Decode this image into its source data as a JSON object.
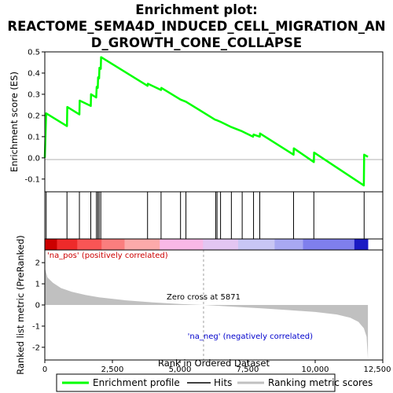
{
  "chart_data": {
    "type": "line",
    "title_lines": [
      "Enrichment plot:",
      "REACTOME_SEMA4D_INDUCED_CELL_MIGRATION_AN",
      "D_GROWTH_CONE_COLLAPSE"
    ],
    "top_panel": {
      "ylabel": "Enrichment score (ES)",
      "ylim": [
        -0.16,
        0.5
      ],
      "yticks": [
        "0.5",
        "0.4",
        "0.3",
        "0.2",
        "0.1",
        "0.0",
        "-0.1"
      ],
      "ytick_values": [
        0.5,
        0.4,
        0.3,
        0.2,
        0.1,
        0.0,
        -0.1
      ],
      "grid": false,
      "es_curve": [
        [
          0,
          0.0
        ],
        [
          50,
          0.21
        ],
        [
          820,
          0.15
        ],
        [
          830,
          0.24
        ],
        [
          1280,
          0.205
        ],
        [
          1290,
          0.27
        ],
        [
          1700,
          0.245
        ],
        [
          1710,
          0.3
        ],
        [
          1900,
          0.285
        ],
        [
          1920,
          0.335
        ],
        [
          1960,
          0.33
        ],
        [
          1970,
          0.38
        ],
        [
          2010,
          0.375
        ],
        [
          2020,
          0.425
        ],
        [
          2070,
          0.42
        ],
        [
          2080,
          0.475
        ],
        [
          3800,
          0.34
        ],
        [
          3810,
          0.35
        ],
        [
          4300,
          0.32
        ],
        [
          4310,
          0.33
        ],
        [
          5020,
          0.275
        ],
        [
          5220,
          0.265
        ],
        [
          6300,
          0.18
        ],
        [
          6350,
          0.178
        ],
        [
          6500,
          0.17
        ],
        [
          6900,
          0.145
        ],
        [
          7300,
          0.125
        ],
        [
          7700,
          0.1
        ],
        [
          7720,
          0.11
        ],
        [
          7950,
          0.1
        ],
        [
          7960,
          0.115
        ],
        [
          9200,
          0.015
        ],
        [
          9210,
          0.045
        ],
        [
          9950,
          -0.02
        ],
        [
          9960,
          0.025
        ],
        [
          11800,
          -0.13
        ],
        [
          11810,
          0.015
        ],
        [
          11950,
          0.005
        ]
      ]
    },
    "hits": [
      50,
      820,
      1280,
      1700,
      1910,
      1960,
      2010,
      2070,
      3800,
      4300,
      5020,
      5220,
      6320,
      6370,
      6500,
      6900,
      7300,
      7720,
      7950,
      9200,
      9950,
      11810
    ],
    "bottom_panel": {
      "ylabel": "Ranked list metric (PreRanked)",
      "ylim": [
        -2.6,
        2.6
      ],
      "yticks": [
        "2",
        "1",
        "0",
        "-1",
        "-2"
      ],
      "ytick_values": [
        2,
        1,
        0,
        -1,
        -2
      ],
      "metric_curve": [
        [
          0,
          1.75
        ],
        [
          100,
          1.3
        ],
        [
          300,
          1.05
        ],
        [
          600,
          0.8
        ],
        [
          1000,
          0.62
        ],
        [
          1500,
          0.47
        ],
        [
          2000,
          0.36
        ],
        [
          3000,
          0.22
        ],
        [
          4000,
          0.12
        ],
        [
          5000,
          0.05
        ],
        [
          5871,
          0.0
        ],
        [
          7000,
          -0.08
        ],
        [
          8000,
          -0.16
        ],
        [
          9000,
          -0.24
        ],
        [
          10000,
          -0.33
        ],
        [
          10800,
          -0.45
        ],
        [
          11300,
          -0.6
        ],
        [
          11600,
          -0.8
        ],
        [
          11800,
          -1.1
        ],
        [
          11900,
          -1.5
        ],
        [
          11950,
          -2.55
        ]
      ],
      "zero_cross_rank": 5871,
      "zero_cross_label": "Zero cross at 5871",
      "pos_label": "'na_pos' (positively correlated)",
      "neg_label": "'na_neg' (negatively correlated)"
    },
    "x": {
      "xlabel": "Rank in Ordered Dataset",
      "xlim": [
        0,
        12500
      ],
      "xticks": [
        "0",
        "2,500",
        "5,000",
        "7,500",
        "10,000",
        "12,500"
      ],
      "xtick_values": [
        0,
        2500,
        5000,
        7500,
        10000,
        12500
      ]
    },
    "heatmap_bar": {
      "colors": [
        "#cc0000",
        "#ee2a2a",
        "#f95555",
        "#fb7e7e",
        "#fcaaaa",
        "#f9b8e6",
        "#e3c6f2",
        "#c8c6f4",
        "#a8a8f2",
        "#7f7fed",
        "#5050e0",
        "#1a1ac4"
      ],
      "stops": [
        0,
        450,
        1200,
        2100,
        2950,
        4250,
        5850,
        7150,
        8500,
        9550,
        9500,
        11450,
        11950
      ]
    },
    "legend": {
      "placement": "bottom",
      "entries": [
        "Enrichment profile",
        "Hits",
        "Ranking metric scores"
      ]
    },
    "colors": {
      "es_line": "#00ff00",
      "hits": "#000000",
      "metric_fill": "#c0c0c0",
      "zero_line": "#a0a0a0",
      "pos_text": "#cc0000",
      "neg_text": "#0000cc"
    }
  }
}
